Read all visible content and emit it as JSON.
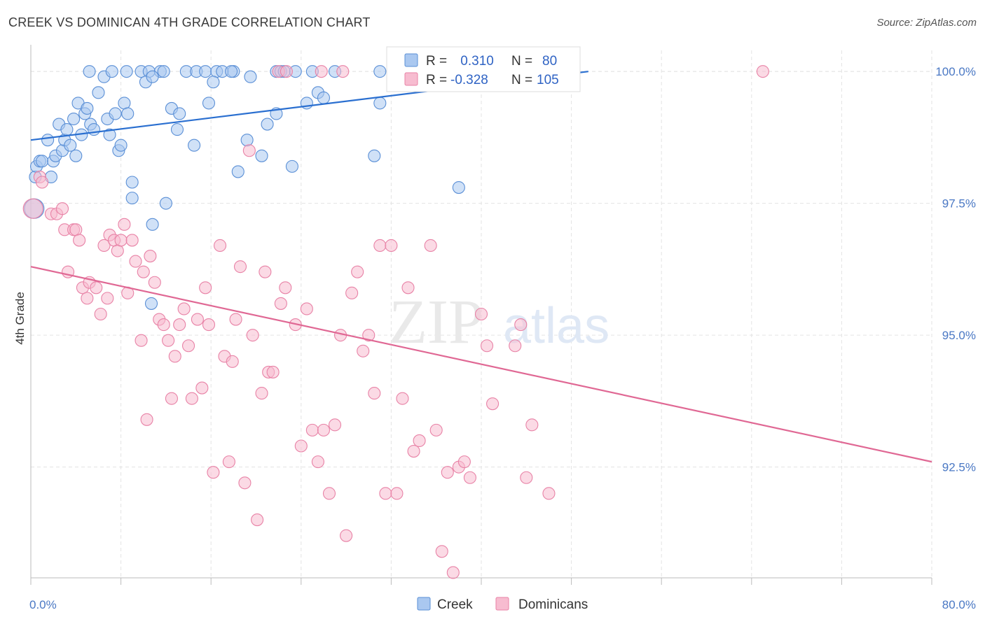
{
  "header": {
    "title": "CREEK VS DOMINICAN 4TH GRADE CORRELATION CHART",
    "source": "Source: ZipAtlas.com"
  },
  "colors": {
    "creek_fill": "#aac8f0",
    "creek_stroke": "#5a8fd6",
    "creek_line": "#2a6fd0",
    "dominican_fill": "#f7bcd0",
    "dominican_stroke": "#e882a6",
    "dominican_line": "#e06894",
    "grid": "#e3e3e3",
    "tick_text": "#4a78c4"
  },
  "legend": {
    "rows": [
      {
        "series": "Creek",
        "r_label": "R = ",
        "r_value": " 0.310",
        "n_label": "N = ",
        "n_value": "80"
      },
      {
        "series": "Dominicans",
        "r_label": "R = ",
        "r_value": "-0.328",
        "n_label": "N = ",
        "n_value": "105"
      }
    ]
  },
  "bottom_legend": [
    "Creek",
    "Dominicans"
  ],
  "watermark": {
    "zip": "ZIP",
    "atlas": "atlas"
  },
  "chart_data": {
    "type": "scatter",
    "title": "CREEK VS DOMINICAN 4TH GRADE CORRELATION CHART",
    "xlabel": "",
    "ylabel": "4th Grade",
    "xlim": [
      0,
      80
    ],
    "ylim": [
      90.4,
      100.4
    ],
    "x_tick_labels": [
      "0.0%",
      "80.0%"
    ],
    "y_ticks": [
      92.5,
      95.0,
      97.5,
      100.0
    ],
    "y_tick_labels": [
      "92.5%",
      "95.0%",
      "97.5%",
      "100.0%"
    ],
    "grid": true,
    "legend_position": "top-center",
    "series": [
      {
        "name": "Creek",
        "r": 0.31,
        "n": 80,
        "trend": {
          "x": [
            0,
            49.5
          ],
          "y": [
            98.7,
            100.0
          ]
        },
        "points": [
          [
            0.3,
            97.4
          ],
          [
            0.4,
            98.0
          ],
          [
            0.5,
            98.2
          ],
          [
            0.8,
            98.3
          ],
          [
            1.0,
            98.3
          ],
          [
            1.5,
            98.7
          ],
          [
            1.8,
            98.0
          ],
          [
            2.0,
            98.3
          ],
          [
            2.2,
            98.4
          ],
          [
            2.5,
            99.0
          ],
          [
            2.8,
            98.5
          ],
          [
            3.0,
            98.7
          ],
          [
            3.2,
            98.9
          ],
          [
            3.5,
            98.6
          ],
          [
            3.8,
            99.1
          ],
          [
            4.0,
            98.4
          ],
          [
            4.2,
            99.4
          ],
          [
            4.5,
            98.8
          ],
          [
            4.8,
            99.2
          ],
          [
            5.0,
            99.3
          ],
          [
            5.3,
            99.0
          ],
          [
            5.6,
            98.9
          ],
          [
            6.0,
            99.6
          ],
          [
            6.5,
            99.9
          ],
          [
            6.8,
            99.1
          ],
          [
            7.0,
            98.8
          ],
          [
            7.5,
            99.2
          ],
          [
            7.8,
            98.5
          ],
          [
            8.0,
            98.6
          ],
          [
            8.3,
            99.4
          ],
          [
            8.6,
            99.2
          ],
          [
            9.0,
            97.9
          ],
          [
            5.2,
            100.0
          ],
          [
            8.5,
            100.0
          ],
          [
            9.8,
            100.0
          ],
          [
            10.5,
            100.0
          ],
          [
            11.5,
            100.0
          ],
          [
            11.8,
            100.0
          ],
          [
            13.8,
            100.0
          ],
          [
            14.7,
            100.0
          ],
          [
            15.5,
            100.0
          ],
          [
            16.5,
            100.0
          ],
          [
            18.0,
            100.0
          ],
          [
            10.2,
            99.8
          ],
          [
            10.8,
            99.9
          ],
          [
            12.5,
            99.3
          ],
          [
            13.2,
            99.2
          ],
          [
            14.5,
            98.6
          ],
          [
            15.8,
            99.4
          ],
          [
            16.2,
            99.8
          ],
          [
            17.0,
            100.0
          ],
          [
            17.8,
            100.0
          ],
          [
            19.2,
            98.7
          ],
          [
            19.5,
            99.9
          ],
          [
            20.5,
            98.4
          ],
          [
            21.8,
            100.0
          ],
          [
            22.2,
            100.0
          ],
          [
            22.5,
            100.0
          ],
          [
            23.5,
            100.0
          ],
          [
            25.0,
            100.0
          ],
          [
            25.5,
            99.6
          ],
          [
            26.0,
            99.5
          ],
          [
            27.0,
            100.0
          ],
          [
            9.0,
            97.6
          ],
          [
            10.7,
            95.6
          ],
          [
            10.8,
            97.1
          ],
          [
            12.0,
            97.5
          ],
          [
            13.0,
            98.9
          ],
          [
            18.4,
            98.1
          ],
          [
            21.0,
            99.0
          ],
          [
            21.8,
            99.2
          ],
          [
            23.2,
            98.2
          ],
          [
            24.5,
            99.4
          ],
          [
            30.5,
            98.4
          ],
          [
            31.0,
            99.4
          ],
          [
            32.5,
            100.0
          ],
          [
            38.0,
            97.8
          ],
          [
            44.5,
            100.0
          ],
          [
            31.0,
            100.0
          ],
          [
            7.2,
            100.0
          ]
        ]
      },
      {
        "name": "Dominicans",
        "r": -0.328,
        "n": 105,
        "trend": {
          "x": [
            0,
            80
          ],
          "y": [
            96.3,
            92.6
          ]
        },
        "points": [
          [
            0.2,
            97.4
          ],
          [
            0.8,
            98.0
          ],
          [
            1.0,
            97.9
          ],
          [
            1.8,
            97.3
          ],
          [
            2.3,
            97.3
          ],
          [
            2.8,
            97.4
          ],
          [
            3.0,
            97.0
          ],
          [
            3.3,
            96.2
          ],
          [
            3.8,
            97.0
          ],
          [
            4.0,
            97.0
          ],
          [
            4.3,
            96.8
          ],
          [
            4.6,
            95.9
          ],
          [
            5.0,
            95.7
          ],
          [
            5.2,
            96.0
          ],
          [
            5.8,
            95.9
          ],
          [
            6.2,
            95.4
          ],
          [
            6.5,
            96.7
          ],
          [
            6.8,
            95.7
          ],
          [
            7.0,
            96.9
          ],
          [
            7.4,
            96.8
          ],
          [
            7.7,
            96.6
          ],
          [
            8.0,
            96.8
          ],
          [
            8.3,
            97.1
          ],
          [
            8.6,
            95.8
          ],
          [
            9.0,
            96.8
          ],
          [
            9.3,
            96.4
          ],
          [
            9.8,
            94.9
          ],
          [
            10.0,
            96.2
          ],
          [
            10.3,
            93.4
          ],
          [
            10.6,
            96.5
          ],
          [
            11.0,
            96.0
          ],
          [
            11.4,
            95.3
          ],
          [
            11.8,
            95.2
          ],
          [
            12.2,
            94.9
          ],
          [
            12.5,
            93.8
          ],
          [
            12.8,
            94.6
          ],
          [
            13.2,
            95.2
          ],
          [
            13.6,
            95.5
          ],
          [
            14.0,
            94.8
          ],
          [
            14.3,
            93.8
          ],
          [
            14.8,
            95.3
          ],
          [
            15.2,
            94.0
          ],
          [
            15.5,
            95.9
          ],
          [
            15.8,
            95.2
          ],
          [
            16.2,
            92.4
          ],
          [
            16.8,
            96.7
          ],
          [
            17.2,
            94.6
          ],
          [
            17.6,
            92.6
          ],
          [
            17.9,
            94.5
          ],
          [
            18.2,
            95.3
          ],
          [
            18.6,
            96.3
          ],
          [
            19.0,
            92.2
          ],
          [
            19.4,
            98.5
          ],
          [
            19.7,
            95.0
          ],
          [
            20.1,
            91.5
          ],
          [
            20.5,
            93.9
          ],
          [
            20.8,
            96.2
          ],
          [
            21.1,
            94.3
          ],
          [
            21.5,
            94.3
          ],
          [
            22.2,
            95.6
          ],
          [
            22.6,
            95.9
          ],
          [
            23.5,
            95.2
          ],
          [
            24.0,
            92.9
          ],
          [
            24.5,
            95.5
          ],
          [
            25.0,
            93.2
          ],
          [
            25.5,
            92.6
          ],
          [
            26.0,
            93.2
          ],
          [
            26.5,
            92.0
          ],
          [
            27.0,
            93.3
          ],
          [
            27.5,
            95.0
          ],
          [
            28.0,
            91.2
          ],
          [
            28.5,
            95.8
          ],
          [
            29.0,
            96.2
          ],
          [
            29.5,
            94.7
          ],
          [
            30.0,
            95.0
          ],
          [
            30.5,
            93.9
          ],
          [
            31.0,
            96.7
          ],
          [
            31.5,
            92.0
          ],
          [
            32.0,
            96.7
          ],
          [
            32.5,
            92.0
          ],
          [
            33.0,
            93.8
          ],
          [
            33.5,
            95.9
          ],
          [
            34.0,
            92.8
          ],
          [
            34.5,
            93.0
          ],
          [
            35.5,
            96.7
          ],
          [
            36.0,
            93.2
          ],
          [
            36.5,
            90.9
          ],
          [
            37.0,
            92.4
          ],
          [
            37.5,
            90.5
          ],
          [
            38.0,
            92.5
          ],
          [
            38.5,
            92.6
          ],
          [
            39.0,
            92.3
          ],
          [
            40.0,
            95.4
          ],
          [
            40.5,
            94.8
          ],
          [
            41.0,
            93.7
          ],
          [
            43.0,
            94.8
          ],
          [
            43.5,
            95.2
          ],
          [
            44.0,
            92.3
          ],
          [
            44.5,
            93.3
          ],
          [
            46.0,
            92.0
          ],
          [
            22.0,
            100.0
          ],
          [
            22.7,
            100.0
          ],
          [
            25.8,
            100.0
          ],
          [
            27.7,
            100.0
          ],
          [
            65.0,
            100.0
          ]
        ]
      }
    ]
  }
}
